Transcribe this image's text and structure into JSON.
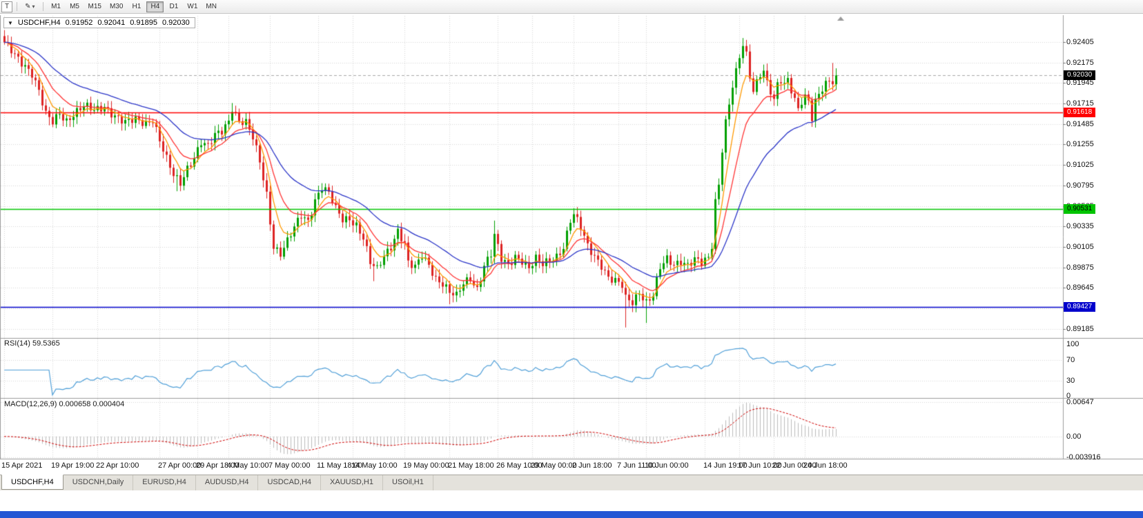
{
  "toolbar": {
    "templates_button": "T",
    "icons": {
      "draw_tool": "✎",
      "dropdown": "▾",
      "symbol_dropdown": "▼"
    },
    "timeframes": [
      "M1",
      "M5",
      "M15",
      "M30",
      "H1",
      "H4",
      "D1",
      "W1",
      "MN"
    ],
    "active_timeframe": "H4"
  },
  "ohlc_line": {
    "symbol": "USDCHF,H4",
    "open": "0.91952",
    "high": "0.92041",
    "low": "0.91895",
    "close": "0.92030"
  },
  "tabs": [
    {
      "label": "USDCHF,H4",
      "active": true
    },
    {
      "label": "USDCNH,Daily",
      "active": false
    },
    {
      "label": "EURUSD,H4",
      "active": false
    },
    {
      "label": "AUDUSD,H4",
      "active": false
    },
    {
      "label": "USDCAD,H4",
      "active": false
    },
    {
      "label": "XAUUSD,H1",
      "active": false
    },
    {
      "label": "USOil,H1",
      "active": false
    }
  ],
  "chart_data": {
    "type": "candlestick",
    "symbol": "USDCHF",
    "period": "H4",
    "candle_count": 242,
    "last_close": 0.9203,
    "ylim": {
      "max": 0.9266,
      "min": 0.8909
    },
    "up_color": "#009f00",
    "down_color": "#dd2222",
    "grid_color": "#d6d6d6",
    "price_axis_labels": [
      "0.92405",
      "0.92175",
      "0.91945",
      "0.91715",
      "0.91485",
      "0.91255",
      "0.91025",
      "0.90795",
      "0.90565",
      "0.90335",
      "0.90105",
      "0.89875",
      "0.89645",
      "0.89415",
      "0.89185"
    ],
    "time_axis_labels": [
      {
        "text": "15 Apr 2021",
        "index": 0
      },
      {
        "text": "19 Apr 19:00",
        "index": 14
      },
      {
        "text": "22 Apr 10:00",
        "index": 27
      },
      {
        "text": "27 Apr 00:00",
        "index": 45
      },
      {
        "text": "29 Apr 18:00",
        "index": 56
      },
      {
        "text": "4 May 10:00",
        "index": 65
      },
      {
        "text": "7 May 00:00",
        "index": 77
      },
      {
        "text": "11 May 18:00",
        "index": 91
      },
      {
        "text": "14 May 10:00",
        "index": 101
      },
      {
        "text": "19 May 00:00",
        "index": 116
      },
      {
        "text": "21 May 18:00",
        "index": 129
      },
      {
        "text": "26 May 10:00",
        "index": 143
      },
      {
        "text": "29 May 00:00",
        "index": 153
      },
      {
        "text": "2 Jun 18:00",
        "index": 165
      },
      {
        "text": "7 Jun 11:00",
        "index": 178
      },
      {
        "text": "10 Jun 00:00",
        "index": 186
      },
      {
        "text": "14 Jun 19:00",
        "index": 203
      },
      {
        "text": "17 Jun 10:00",
        "index": 213
      },
      {
        "text": "22 Jun 00:00",
        "index": 223
      },
      {
        "text": "24 Jun 18:00",
        "index": 232
      }
    ],
    "horizontal_lines": [
      {
        "label": "0.91618",
        "value": 0.91618,
        "color": "#ff0000",
        "text_color": "#ffffff"
      },
      {
        "label": "0.90531",
        "value": 0.90531,
        "color": "#00c400",
        "text_color": "#000000"
      },
      {
        "label": "0.89427",
        "value": 0.89427,
        "color": "#0000cc",
        "text_color": "#ffffff"
      }
    ],
    "current_price": {
      "label": "0.92030",
      "value": 0.9203,
      "bg": "#000000",
      "text_color": "#ffffff"
    },
    "moving_averages": [
      {
        "period": 6,
        "color": "#ff9900"
      },
      {
        "period": 13,
        "color": "#ff3333"
      },
      {
        "period": 32,
        "color": "#2b35c8"
      }
    ],
    "close_anchors": [
      [
        0,
        0.9238
      ],
      [
        2,
        0.923
      ],
      [
        4,
        0.9222
      ],
      [
        6,
        0.9215
      ],
      [
        8,
        0.9206
      ],
      [
        10,
        0.9185
      ],
      [
        12,
        0.9158
      ],
      [
        14,
        0.915
      ],
      [
        16,
        0.9161
      ],
      [
        18,
        0.9153
      ],
      [
        20,
        0.916
      ],
      [
        23,
        0.9168
      ],
      [
        26,
        0.9163
      ],
      [
        29,
        0.9169
      ],
      [
        32,
        0.9158
      ],
      [
        35,
        0.9149
      ],
      [
        38,
        0.9153
      ],
      [
        41,
        0.915
      ],
      [
        43,
        0.9155
      ],
      [
        45,
        0.913
      ],
      [
        47,
        0.9108
      ],
      [
        49,
        0.909
      ],
      [
        51,
        0.9082
      ],
      [
        53,
        0.91
      ],
      [
        55,
        0.9112
      ],
      [
        57,
        0.9128
      ],
      [
        59,
        0.9122
      ],
      [
        61,
        0.9135
      ],
      [
        63,
        0.9141
      ],
      [
        65,
        0.9153
      ],
      [
        66,
        0.9168
      ],
      [
        68,
        0.9152
      ],
      [
        70,
        0.9149
      ],
      [
        72,
        0.9132
      ],
      [
        74,
        0.9106
      ],
      [
        76,
        0.907
      ],
      [
        77,
        0.904
      ],
      [
        78,
        0.9012
      ],
      [
        80,
        0.9003
      ],
      [
        82,
        0.9016
      ],
      [
        84,
        0.9031
      ],
      [
        86,
        0.9046
      ],
      [
        88,
        0.904
      ],
      [
        90,
        0.9064
      ],
      [
        92,
        0.9078
      ],
      [
        94,
        0.907
      ],
      [
        96,
        0.9052
      ],
      [
        98,
        0.9041
      ],
      [
        100,
        0.9043
      ],
      [
        102,
        0.9036
      ],
      [
        104,
        0.9021
      ],
      [
        106,
        0.8992
      ],
      [
        108,
        0.8984
      ],
      [
        110,
        0.9
      ],
      [
        112,
        0.9012
      ],
      [
        114,
        0.903
      ],
      [
        116,
        0.9014
      ],
      [
        117,
        0.8992
      ],
      [
        119,
        0.8986
      ],
      [
        121,
        0.9
      ],
      [
        123,
        0.8991
      ],
      [
        125,
        0.8976
      ],
      [
        127,
        0.897
      ],
      [
        129,
        0.8959
      ],
      [
        131,
        0.8954
      ],
      [
        133,
        0.8969
      ],
      [
        135,
        0.8976
      ],
      [
        137,
        0.8964
      ],
      [
        139,
        0.899
      ],
      [
        141,
        0.9002
      ],
      [
        142,
        0.9022
      ],
      [
        144,
        0.8996
      ],
      [
        146,
        0.899
      ],
      [
        148,
        0.9001
      ],
      [
        150,
        0.8996
      ],
      [
        152,
        0.8986
      ],
      [
        154,
        0.8996
      ],
      [
        156,
        0.899
      ],
      [
        158,
        0.8996
      ],
      [
        160,
        0.9001
      ],
      [
        162,
        0.9011
      ],
      [
        164,
        0.904
      ],
      [
        165,
        0.9046
      ],
      [
        167,
        0.9031
      ],
      [
        169,
        0.9011
      ],
      [
        171,
        0.9001
      ],
      [
        173,
        0.8991
      ],
      [
        175,
        0.8976
      ],
      [
        177,
        0.8971
      ],
      [
        179,
        0.8966
      ],
      [
        180,
        0.8952
      ],
      [
        182,
        0.8949
      ],
      [
        184,
        0.8961
      ],
      [
        186,
        0.8949
      ],
      [
        188,
        0.8956
      ],
      [
        190,
        0.8986
      ],
      [
        192,
        0.8996
      ],
      [
        194,
        0.8991
      ],
      [
        196,
        0.8996
      ],
      [
        198,
        0.8991
      ],
      [
        200,
        0.8996
      ],
      [
        202,
        0.8991
      ],
      [
        204,
        0.8997
      ],
      [
        205,
        0.9012
      ],
      [
        206,
        0.9062
      ],
      [
        207,
        0.9082
      ],
      [
        208,
        0.9122
      ],
      [
        209,
        0.9152
      ],
      [
        210,
        0.9172
      ],
      [
        211,
        0.9192
      ],
      [
        212,
        0.9206
      ],
      [
        213,
        0.9222
      ],
      [
        214,
        0.9236
      ],
      [
        215,
        0.9224
      ],
      [
        216,
        0.9201
      ],
      [
        217,
        0.9186
      ],
      [
        218,
        0.9196
      ],
      [
        219,
        0.9206
      ],
      [
        220,
        0.9211
      ],
      [
        221,
        0.9196
      ],
      [
        222,
        0.9186
      ],
      [
        223,
        0.9176
      ],
      [
        224,
        0.9191
      ],
      [
        225,
        0.9196
      ],
      [
        226,
        0.9191
      ],
      [
        227,
        0.9196
      ],
      [
        228,
        0.9186
      ],
      [
        229,
        0.9176
      ],
      [
        230,
        0.9166
      ],
      [
        231,
        0.9176
      ],
      [
        232,
        0.9181
      ],
      [
        233,
        0.9176
      ],
      [
        234,
        0.9156
      ],
      [
        235,
        0.9173
      ],
      [
        236,
        0.9181
      ],
      [
        237,
        0.9186
      ],
      [
        238,
        0.9191
      ],
      [
        239,
        0.9196
      ],
      [
        240,
        0.9195
      ],
      [
        241,
        0.9203
      ]
    ],
    "wick_high_overrides": {
      "66": 0.9172,
      "92": 0.9082,
      "114": 0.9036,
      "142": 0.904,
      "165": 0.9047,
      "214": 0.9245,
      "240": 0.9217,
      "241": 0.92041
    },
    "wick_low_overrides": {
      "13": 0.9147,
      "50": 0.9073,
      "80": 0.8996,
      "107": 0.8972,
      "129": 0.8946,
      "180": 0.892,
      "186": 0.8925,
      "234": 0.9148,
      "241": 0.91895
    },
    "indicators": {
      "rsi": {
        "title": "RSI(14) 59.5365",
        "period": 14,
        "value": 59.5365,
        "color": "#4f9fd8",
        "levels": [
          {
            "label": "100",
            "value": 100
          },
          {
            "label": "70",
            "value": 70
          },
          {
            "label": "30",
            "value": 30
          },
          {
            "label": "0",
            "value": 0
          }
        ]
      },
      "macd": {
        "title": "MACD(12,26,9) 0.000658 0.000404",
        "fast": 12,
        "slow": 26,
        "signal_period": 9,
        "macd_value": 0.000658,
        "signal_value": 0.000404,
        "histogram_color": "#bcbcbc",
        "signal_color": "#d00000",
        "range": {
          "max": 0.00647,
          "min": -0.003916
        },
        "levels": [
          {
            "label": "0.00647",
            "value": 0.00647
          },
          {
            "label": "0.00",
            "value": 0
          },
          {
            "label": "-0.003916",
            "value": -0.003916
          }
        ]
      }
    }
  }
}
